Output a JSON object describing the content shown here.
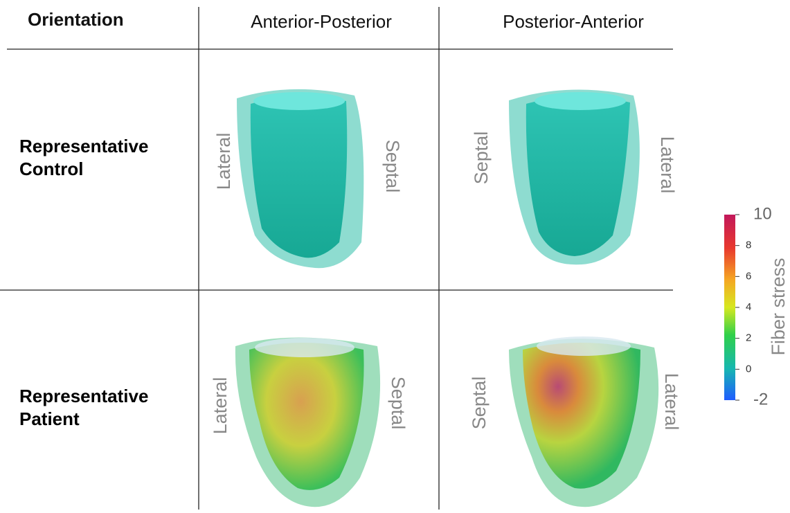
{
  "table": {
    "header": [
      "Orientation",
      "Anterior-Posterior",
      "Posterior-Anterior"
    ],
    "rows": [
      {
        "label": [
          "Representative",
          "Control"
        ],
        "cells": [
          {
            "left": "Lateral",
            "right": "Septal"
          },
          {
            "left": "Septal",
            "right": "Lateral"
          }
        ]
      },
      {
        "label": [
          "Representative",
          "Patient"
        ],
        "cells": [
          {
            "left": "Lateral",
            "right": "Septal"
          },
          {
            "left": "Septal",
            "right": "Lateral"
          }
        ]
      }
    ]
  },
  "colorbar": {
    "label": "Fiber stress",
    "lim": [
      -2,
      10
    ],
    "ticks": [
      -2,
      0,
      2,
      4,
      6,
      8,
      10
    ]
  }
}
